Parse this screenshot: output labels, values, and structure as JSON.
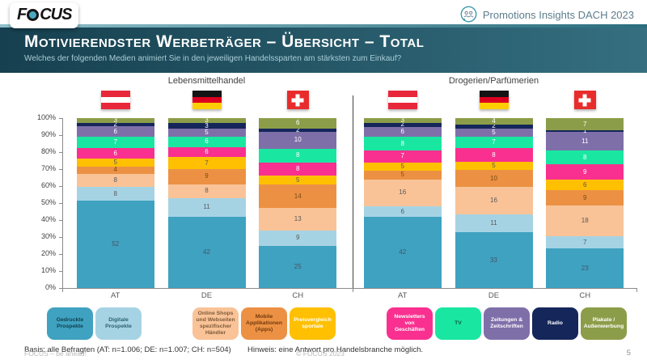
{
  "header": {
    "logo": {
      "parts": [
        "F",
        "CUS"
      ],
      "name": "FOCUS"
    },
    "badge": "Promotions Insights DACH 2023",
    "title": "Motivierendster Werbeträger – Übersicht – Total",
    "subtitle": "Welches der folgenden Medien animiert Sie in den jeweiligen Handelssparten am stärksten zum Einkauf?"
  },
  "chart_data": {
    "type": "bar",
    "stacked": true,
    "value_unit": "%",
    "y_axis": {
      "min": 0,
      "max": 100,
      "step": 10,
      "tick_labels": [
        "100%",
        "90%",
        "80%",
        "70%",
        "60%",
        "50%",
        "40%",
        "30%",
        "20%",
        "10%",
        "0%"
      ]
    },
    "groups": [
      {
        "title": "Lebensmittelhandel",
        "categories": [
          "AT",
          "DE",
          "CH"
        ],
        "flags": [
          "austria",
          "germany",
          "switzerland"
        ]
      },
      {
        "title": "Drogerien/Parfümerien",
        "categories": [
          "AT",
          "DE",
          "CH"
        ],
        "flags": [
          "austria",
          "germany",
          "switzerland"
        ]
      }
    ],
    "flag_colors": {
      "austria": {
        "stripes": [
          "#E8273B",
          "#FFFFFF",
          "#E8273B"
        ]
      },
      "germany": {
        "stripes": [
          "#141414",
          "#DB001F",
          "#FFCE00"
        ]
      },
      "switzerland": {
        "background": "#E82C2C",
        "cross": "#FFFFFF"
      }
    },
    "legend_group_starts": [
      2,
      5
    ],
    "series": [
      {
        "name": "Gedruckte Prospekte",
        "color": "#3FA2C0",
        "label_color": "#44546A",
        "legend_text_color": "#123F4D",
        "legend_lines": [
          "Gedruckte Prospekte"
        ],
        "values": [
          [
            52,
            42,
            25
          ],
          [
            42,
            33,
            23
          ]
        ]
      },
      {
        "name": "Digitale Prospekte",
        "color": "#A6D3E4",
        "label_color": "#595959",
        "legend_text_color": "#2A6171",
        "legend_lines": [
          "Digitale Prospekte"
        ],
        "values": [
          [
            8,
            11,
            9
          ],
          [
            6,
            11,
            7
          ]
        ]
      },
      {
        "name": "Online Shops und Webseiten spezifischer Händler",
        "color": "#F9C397",
        "label_color": "#595959",
        "legend_text_color": "#7F5B3A",
        "legend_lines": [
          "Online Shops",
          "und Webseiten",
          "spezifischer",
          "Händler"
        ],
        "values": [
          [
            8,
            8,
            13
          ],
          [
            16,
            16,
            18
          ]
        ]
      },
      {
        "name": "Mobile Applikationen (Apps)",
        "color": "#EC9144",
        "label_color": "#7B4A12",
        "legend_text_color": "#733A0B",
        "legend_lines": [
          "Mobile",
          "Applikationen",
          "(Apps)"
        ],
        "values": [
          [
            4,
            9,
            14
          ],
          [
            5,
            10,
            9
          ]
        ]
      },
      {
        "name": "Preisvergleichsportale",
        "color": "#FEC000",
        "label_color": "#595959",
        "legend_text_color": "#FFFFFF",
        "legend_lines": [
          "Preisvergleich",
          "sportale"
        ],
        "values": [
          [
            5,
            7,
            5
          ],
          [
            5,
            5,
            6
          ]
        ]
      },
      {
        "name": "Newsletters von Geschäften",
        "color": "#F9308F",
        "label_color": "#FFFFFF",
        "legend_text_color": "#FFFFFF",
        "legend_lines": [
          "Newsletters",
          "von",
          "Geschäften"
        ],
        "values": [
          [
            6,
            6,
            8
          ],
          [
            7,
            8,
            9
          ]
        ]
      },
      {
        "name": "TV",
        "color": "#19E7A1",
        "label_color": "#FFFFFF",
        "legend_text_color": "#0E5A43",
        "legend_lines": [
          "TV"
        ],
        "values": [
          [
            7,
            6,
            8
          ],
          [
            8,
            7,
            8
          ]
        ]
      },
      {
        "name": "Zeitungen & Zeitschriften",
        "color": "#7F6FA9",
        "label_color": "#FFFFFF",
        "legend_text_color": "#FFFFFF",
        "legend_lines": [
          "Zeitungen &",
          "Zeitschriften"
        ],
        "values": [
          [
            6,
            5,
            10
          ],
          [
            6,
            5,
            11
          ]
        ]
      },
      {
        "name": "Radio",
        "color": "#15265B",
        "label_color": "#FFFFFF",
        "legend_text_color": "#FFFFFF",
        "legend_lines": [
          "Radio"
        ],
        "values": [
          [
            2,
            3,
            2
          ],
          [
            2,
            2,
            1
          ]
        ]
      },
      {
        "name": "Plakate / Außenwerbung",
        "color": "#8C9D49",
        "label_color": "#FFFFFF",
        "legend_text_color": "#FFFFFF",
        "legend_lines": [
          "Plakate /",
          "Außenwerbung"
        ],
        "values": [
          [
            3,
            3,
            6
          ],
          [
            3,
            4,
            7
          ]
        ]
      }
    ]
  },
  "footnotes": {
    "basis": "Basis: alle Befragten (AT: n=1.006; DE: n=1.007; CH: n=504)",
    "hinweis": "Hinweis: eine Antwort pro Handelsbranche möglich."
  },
  "footer": {
    "left": "FOCUS – be ahead!",
    "center": "© FOCUS 2023",
    "page": "5"
  }
}
